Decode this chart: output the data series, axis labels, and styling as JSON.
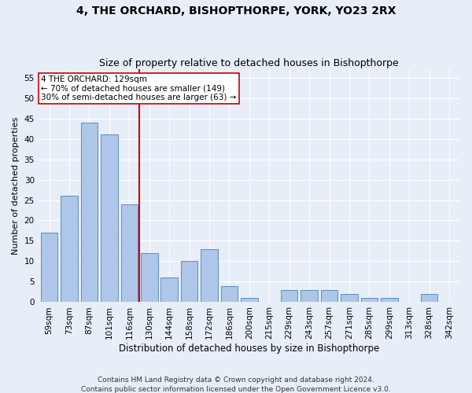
{
  "title": "4, THE ORCHARD, BISHOPTHORPE, YORK, YO23 2RX",
  "subtitle": "Size of property relative to detached houses in Bishopthorpe",
  "xlabel": "Distribution of detached houses by size in Bishopthorpe",
  "ylabel": "Number of detached properties",
  "categories": [
    "59sqm",
    "73sqm",
    "87sqm",
    "101sqm",
    "116sqm",
    "130sqm",
    "144sqm",
    "158sqm",
    "172sqm",
    "186sqm",
    "200sqm",
    "215sqm",
    "229sqm",
    "243sqm",
    "257sqm",
    "271sqm",
    "285sqm",
    "299sqm",
    "313sqm",
    "328sqm",
    "342sqm"
  ],
  "values": [
    17,
    26,
    44,
    41,
    24,
    12,
    6,
    10,
    13,
    4,
    1,
    0,
    3,
    3,
    3,
    2,
    1,
    1,
    0,
    2,
    0
  ],
  "bar_color": "#aec6e8",
  "bar_edge_color": "#5a8fc0",
  "subject_line_color": "#cc0000",
  "annotation_line1": "4 THE ORCHARD: 129sqm",
  "annotation_line2": "← 70% of detached houses are smaller (149)",
  "annotation_line3": "30% of semi-detached houses are larger (63) →",
  "annotation_box_color": "#ffffff",
  "annotation_box_edge": "#cc0000",
  "background_color": "#e8eef7",
  "ylim": [
    0,
    57
  ],
  "yticks": [
    0,
    5,
    10,
    15,
    20,
    25,
    30,
    35,
    40,
    45,
    50,
    55
  ],
  "footer": "Contains HM Land Registry data © Crown copyright and database right 2024.\nContains public sector information licensed under the Open Government Licence v3.0.",
  "grid_color": "#ffffff",
  "title_fontsize": 10,
  "subtitle_fontsize": 9,
  "xlabel_fontsize": 8.5,
  "ylabel_fontsize": 8,
  "tick_fontsize": 7.5,
  "annotation_fontsize": 7.5,
  "footer_fontsize": 6.5
}
